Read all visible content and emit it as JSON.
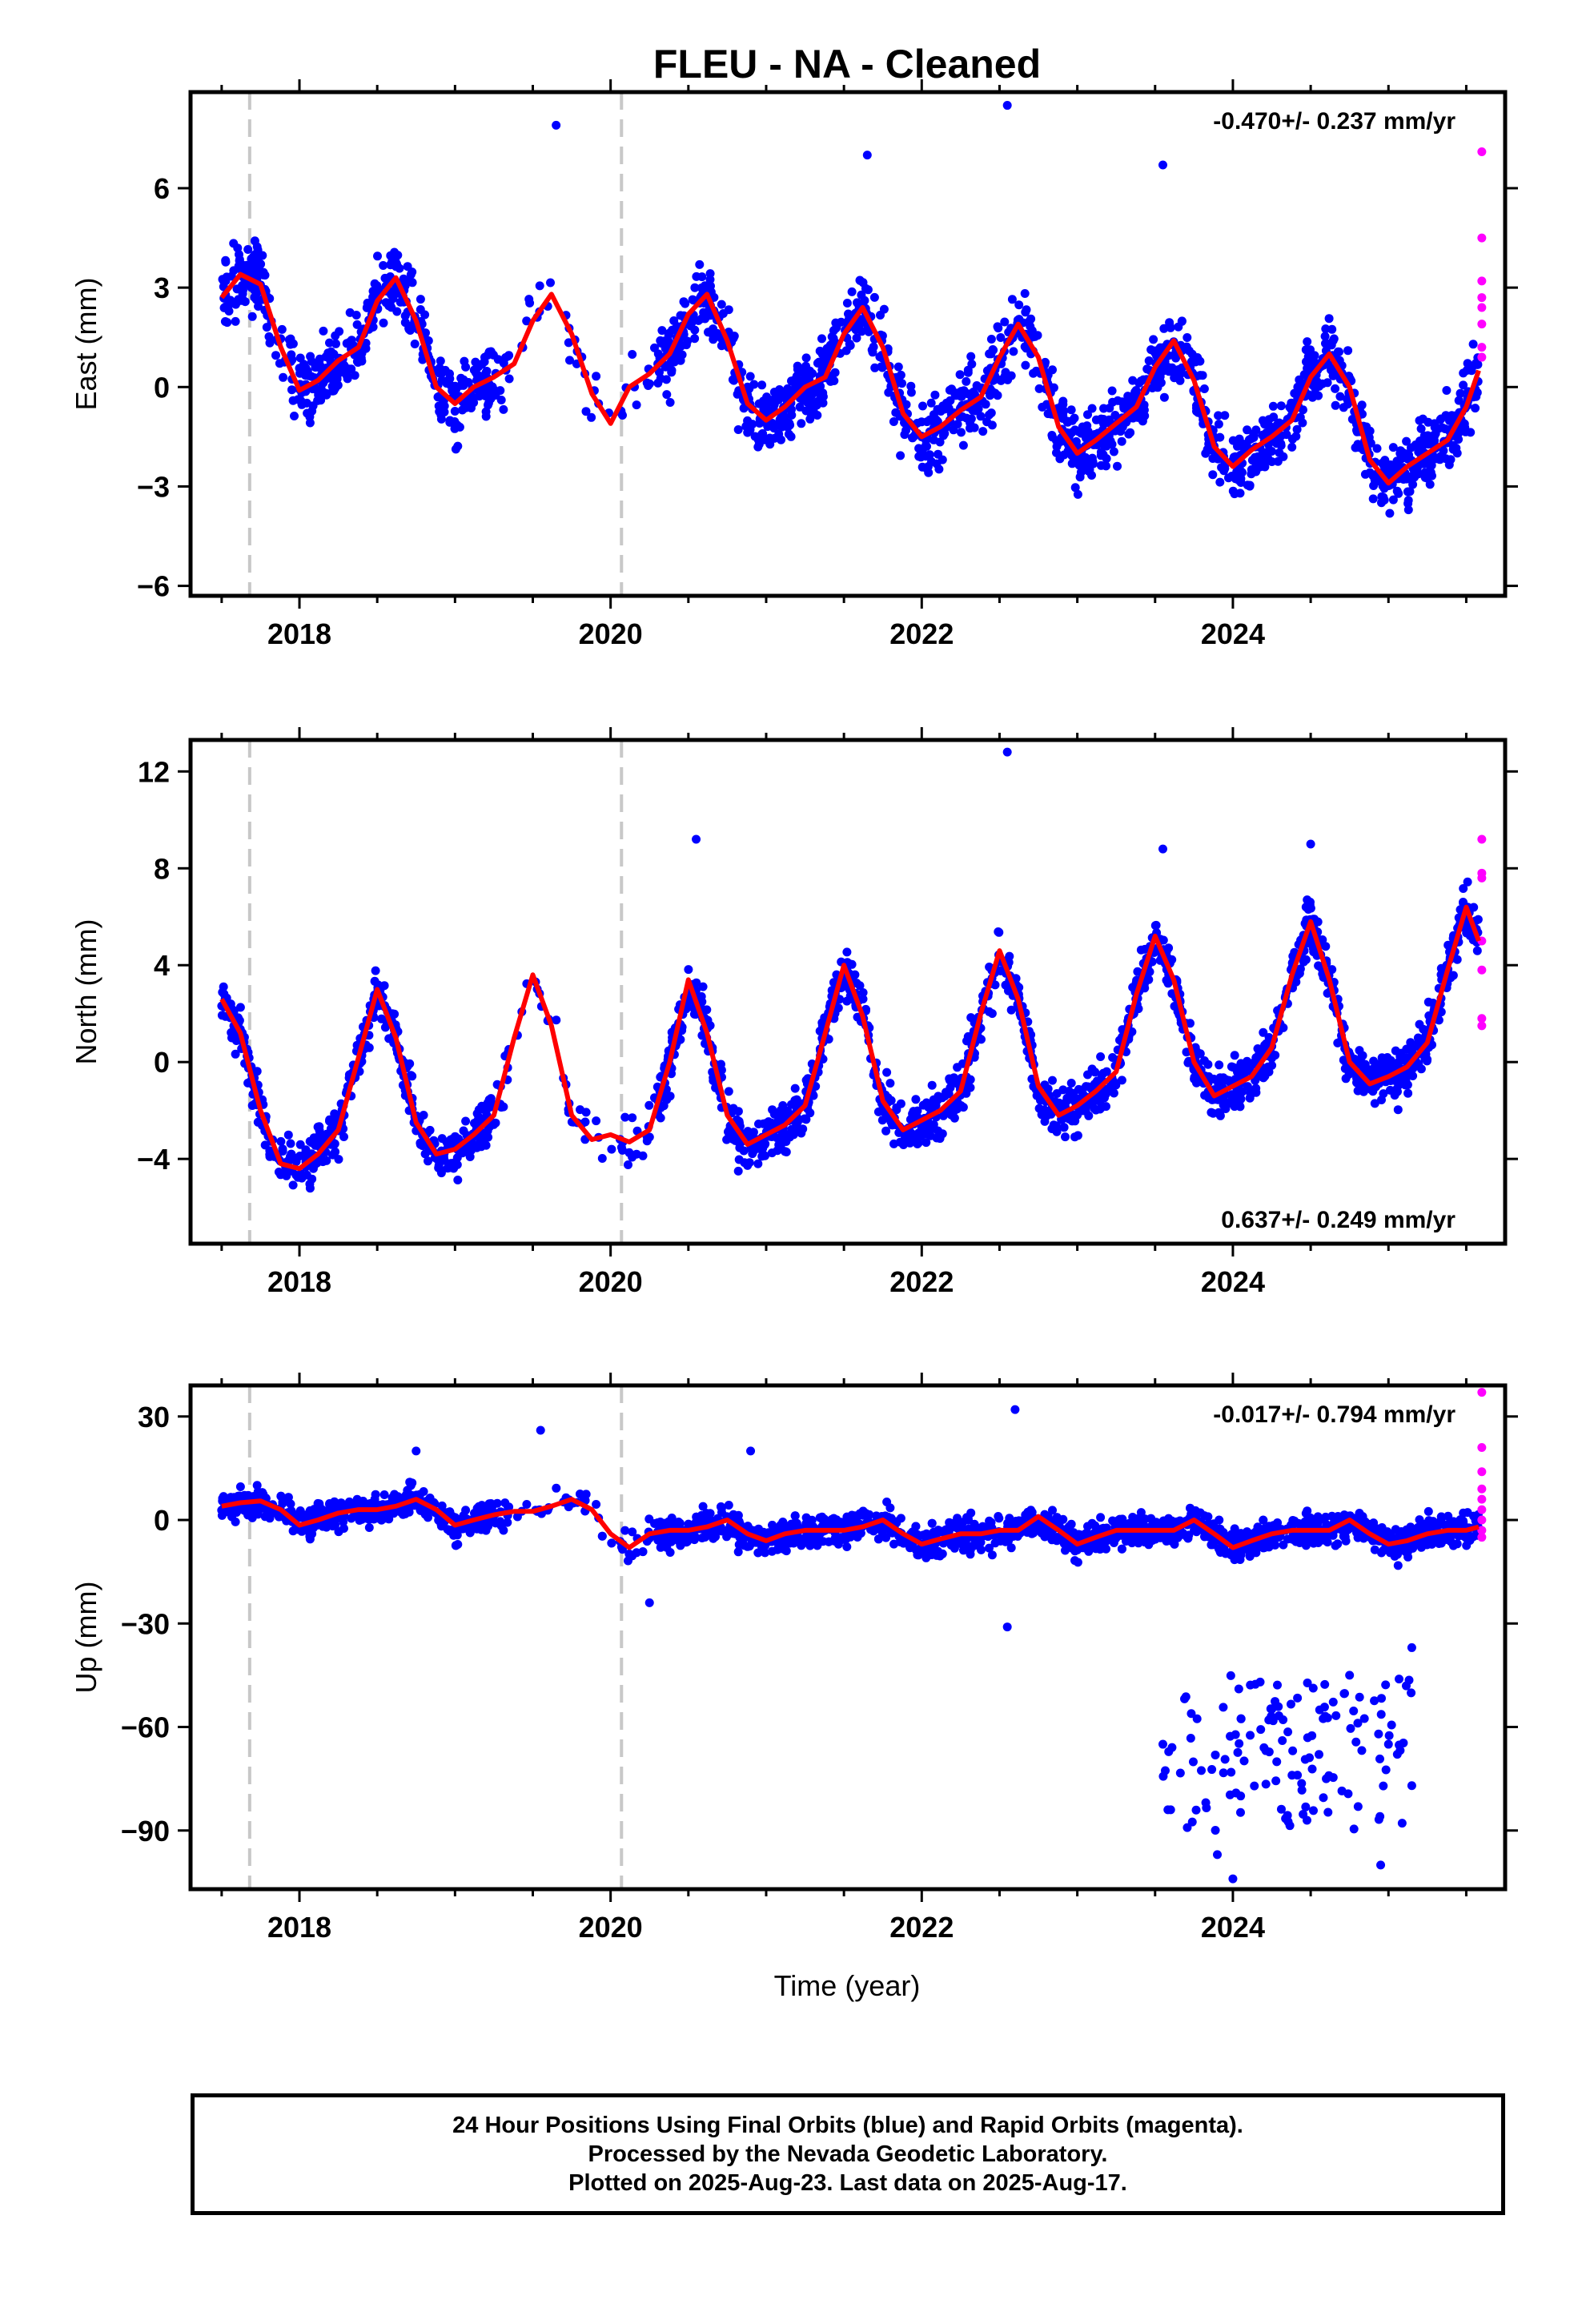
{
  "title": "FLEU  - NA - Cleaned",
  "colors": {
    "final_orbits": "#0000ff",
    "rapid_orbits": "#ff00ff",
    "model_fit": "#ff0000",
    "equipment_change": "#c8c8c8"
  },
  "chart_data": [
    {
      "type": "scatter",
      "panel": "east",
      "ylabel": "East (mm)",
      "xlabel": "",
      "rate_label": "-0.470+/- 0.237 mm/yr",
      "rate_label_position": "top-right",
      "xlim": [
        2017.3,
        2025.75
      ],
      "ylim": [
        -6.3,
        8.9
      ],
      "x_ticks": [
        2018,
        2020,
        2022,
        2024
      ],
      "y_ticks": [
        -6,
        -3,
        0,
        3,
        6
      ],
      "y_tick_labels": [
        "−6",
        "−3",
        "0",
        "3",
        "6"
      ],
      "equipment_change_dates": [
        2017.68,
        2020.07
      ],
      "fit": {
        "x": [
          2017.5,
          2017.62,
          2017.75,
          2017.88,
          2018.0,
          2018.12,
          2018.25,
          2018.38,
          2018.5,
          2018.62,
          2018.75,
          2018.88,
          2019.0,
          2019.12,
          2019.25,
          2019.38,
          2019.5,
          2019.62,
          2019.75,
          2019.88,
          2020.0,
          2020.12,
          2020.25,
          2020.38,
          2020.5,
          2020.62,
          2020.75,
          2020.88,
          2021.0,
          2021.12,
          2021.25,
          2021.38,
          2021.5,
          2021.62,
          2021.75,
          2021.88,
          2022.0,
          2022.12,
          2022.25,
          2022.38,
          2022.5,
          2022.62,
          2022.75,
          2022.88,
          2023.0,
          2023.12,
          2023.25,
          2023.38,
          2023.5,
          2023.62,
          2023.75,
          2023.88,
          2024.0,
          2024.12,
          2024.25,
          2024.38,
          2024.5,
          2024.62,
          2024.75,
          2024.88,
          2025.0,
          2025.12,
          2025.25,
          2025.38,
          2025.5,
          2025.58
        ],
        "y": [
          2.7,
          3.4,
          3.1,
          1.2,
          -0.1,
          0.2,
          0.8,
          1.2,
          2.6,
          3.3,
          2.0,
          0.0,
          -0.5,
          0.0,
          0.3,
          0.7,
          2.0,
          2.8,
          1.6,
          -0.2,
          -1.1,
          0.0,
          0.4,
          1.0,
          2.2,
          2.8,
          1.4,
          -0.5,
          -1.0,
          -0.6,
          0.0,
          0.3,
          1.6,
          2.4,
          1.2,
          -0.8,
          -1.5,
          -1.2,
          -0.7,
          -0.3,
          0.9,
          1.9,
          0.9,
          -1.2,
          -2.0,
          -1.6,
          -1.1,
          -0.6,
          0.6,
          1.4,
          0.2,
          -1.8,
          -2.4,
          -1.9,
          -1.5,
          -1.0,
          0.3,
          1.0,
          0.0,
          -2.2,
          -2.9,
          -2.4,
          -2.0,
          -1.6,
          -0.6,
          0.5
        ]
      },
      "outliers_high": [
        [
          2019.65,
          7.9
        ],
        [
          2020.45,
          0.8
        ],
        [
          2022.55,
          8.5
        ],
        [
          2021.65,
          7.0
        ],
        [
          2023.55,
          6.7
        ]
      ],
      "rapid_orbit_values": [
        7.1,
        4.5,
        3.2,
        2.7,
        2.4,
        1.9,
        1.2,
        0.9
      ]
    },
    {
      "type": "scatter",
      "panel": "north",
      "ylabel": "North (mm)",
      "xlabel": "",
      "rate_label": "0.637+/- 0.249 mm/yr",
      "rate_label_position": "bottom-right",
      "xlim": [
        2017.3,
        2025.75
      ],
      "ylim": [
        -7.5,
        13.3
      ],
      "x_ticks": [
        2018,
        2020,
        2022,
        2024
      ],
      "y_ticks": [
        -4,
        0,
        4,
        8,
        12
      ],
      "y_tick_labels": [
        "−4",
        "0",
        "4",
        "8",
        "12"
      ],
      "equipment_change_dates": [
        2017.68,
        2020.07
      ],
      "fit": {
        "x": [
          2017.5,
          2017.62,
          2017.75,
          2017.88,
          2018.0,
          2018.12,
          2018.25,
          2018.38,
          2018.5,
          2018.62,
          2018.75,
          2018.88,
          2019.0,
          2019.12,
          2019.25,
          2019.38,
          2019.5,
          2019.62,
          2019.75,
          2019.88,
          2020.0,
          2020.12,
          2020.25,
          2020.38,
          2020.5,
          2020.62,
          2020.75,
          2020.88,
          2021.0,
          2021.12,
          2021.25,
          2021.38,
          2021.5,
          2021.62,
          2021.75,
          2021.88,
          2022.0,
          2022.12,
          2022.25,
          2022.38,
          2022.5,
          2022.62,
          2022.75,
          2022.88,
          2023.0,
          2023.12,
          2023.25,
          2023.38,
          2023.5,
          2023.62,
          2023.75,
          2023.88,
          2024.0,
          2024.12,
          2024.25,
          2024.38,
          2024.5,
          2024.62,
          2024.75,
          2024.88,
          2025.0,
          2025.12,
          2025.25,
          2025.38,
          2025.5,
          2025.58
        ],
        "y": [
          2.6,
          1.2,
          -2.0,
          -4.2,
          -4.4,
          -3.8,
          -2.8,
          0.2,
          3.0,
          1.0,
          -2.5,
          -3.8,
          -3.6,
          -3.0,
          -2.2,
          1.0,
          3.6,
          1.5,
          -2.2,
          -3.2,
          -3.0,
          -3.3,
          -2.8,
          0.0,
          3.4,
          1.2,
          -2.2,
          -3.4,
          -3.0,
          -2.6,
          -1.8,
          1.2,
          4.0,
          1.9,
          -1.6,
          -2.8,
          -2.4,
          -2.0,
          -1.2,
          2.0,
          4.6,
          2.6,
          -1.0,
          -2.2,
          -1.8,
          -1.2,
          -0.4,
          2.8,
          5.2,
          3.4,
          0.0,
          -1.4,
          -1.0,
          -0.6,
          0.6,
          3.6,
          5.8,
          3.4,
          0.0,
          -0.9,
          -0.6,
          -0.2,
          0.8,
          3.8,
          6.4,
          5.0
        ]
      },
      "outliers_high": [
        [
          2022.55,
          12.8
        ],
        [
          2020.55,
          9.2
        ],
        [
          2024.5,
          9.0
        ],
        [
          2023.55,
          8.8
        ]
      ],
      "rapid_orbit_values": [
        9.2,
        7.8,
        7.6,
        5.0,
        3.8,
        1.8,
        1.5
      ]
    },
    {
      "type": "scatter",
      "panel": "up",
      "ylabel": "Up (mm)",
      "xlabel": "Time (year)",
      "rate_label": "-0.017+/- 0.794 mm/yr",
      "rate_label_position": "top-right",
      "xlim": [
        2017.3,
        2025.75
      ],
      "ylim": [
        -107,
        39
      ],
      "x_ticks": [
        2018,
        2020,
        2022,
        2024
      ],
      "y_ticks": [
        -90,
        -60,
        -30,
        0,
        30
      ],
      "y_tick_labels": [
        "−90",
        "−60",
        "−30",
        "0",
        "30"
      ],
      "equipment_change_dates": [
        2017.68,
        2020.07
      ],
      "fit": {
        "x": [
          2017.5,
          2017.62,
          2017.75,
          2017.88,
          2018.0,
          2018.12,
          2018.25,
          2018.38,
          2018.5,
          2018.62,
          2018.75,
          2018.88,
          2019.0,
          2019.12,
          2019.25,
          2019.38,
          2019.5,
          2019.62,
          2019.75,
          2019.88,
          2020.0,
          2020.12,
          2020.25,
          2020.38,
          2020.5,
          2020.62,
          2020.75,
          2020.88,
          2021.0,
          2021.12,
          2021.25,
          2021.38,
          2021.5,
          2021.62,
          2021.75,
          2021.88,
          2022.0,
          2022.12,
          2022.25,
          2022.38,
          2022.5,
          2022.62,
          2022.75,
          2022.88,
          2023.0,
          2023.12,
          2023.25,
          2023.38,
          2023.5,
          2023.62,
          2023.75,
          2023.88,
          2024.0,
          2024.12,
          2024.25,
          2024.38,
          2024.5,
          2024.62,
          2024.75,
          2024.88,
          2025.0,
          2025.12,
          2025.25,
          2025.38,
          2025.5,
          2025.58
        ],
        "y": [
          4.0,
          5.0,
          5.5,
          3.0,
          -1.5,
          0.0,
          2.0,
          3.0,
          3.0,
          4.0,
          6.0,
          3.0,
          -1.5,
          0.0,
          1.5,
          2.5,
          2.5,
          4.0,
          6.0,
          3.0,
          -4.0,
          -8.0,
          -4.0,
          -3.0,
          -3.0,
          -2.0,
          0.0,
          -4.0,
          -6.0,
          -4.0,
          -3.0,
          -3.0,
          -3.0,
          -2.0,
          0.0,
          -4.0,
          -7.0,
          -5.5,
          -4.0,
          -4.0,
          -3.0,
          -3.0,
          1.0,
          -3.0,
          -7.0,
          -5.0,
          -3.0,
          -3.0,
          -3.0,
          -3.0,
          0.0,
          -4.0,
          -8.0,
          -6.0,
          -4.0,
          -3.0,
          -3.0,
          -3.0,
          0.0,
          -4.0,
          -7.0,
          -6.0,
          -4.0,
          -3.0,
          -3.0,
          -2.0
        ]
      },
      "outliers_low": [
        [
          2020.25,
          -24
        ],
        [
          2022.55,
          -31
        ],
        [
          2023.55,
          -65
        ],
        [
          2023.6,
          -84
        ],
        [
          2023.9,
          -97
        ],
        [
          2024.0,
          -104
        ],
        [
          2024.05,
          -80
        ],
        [
          2024.2,
          -66
        ],
        [
          2024.6,
          -75
        ],
        [
          2024.75,
          -45
        ],
        [
          2024.95,
          -100
        ],
        [
          2025.0,
          -65
        ],
        [
          2025.15,
          -77
        ],
        [
          2025.15,
          -37
        ]
      ],
      "outliers_high": [
        [
          2022.6,
          32
        ],
        [
          2019.55,
          26
        ],
        [
          2018.75,
          20
        ],
        [
          2020.9,
          20
        ]
      ],
      "rapid_orbit_values": [
        37,
        21,
        14,
        9,
        6,
        3,
        0,
        -3,
        -5
      ]
    }
  ],
  "footer": {
    "line1": "24 Hour Positions Using Final Orbits (blue) and Rapid Orbits (magenta).",
    "line2": "Processed by the Nevada Geodetic Laboratory.",
    "line3": "Plotted on 2025-Aug-23. Last data on 2025-Aug-17."
  }
}
